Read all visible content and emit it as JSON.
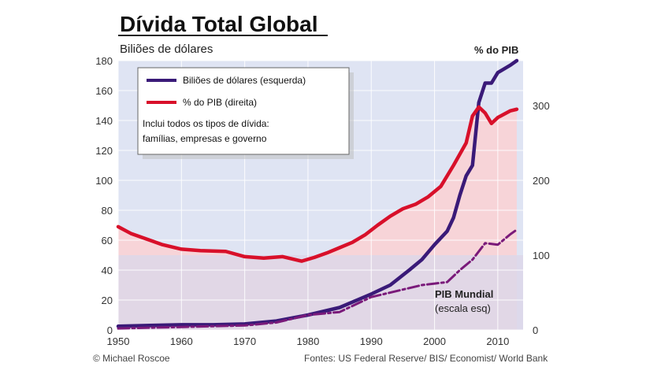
{
  "chart_data": {
    "type": "line",
    "title": "Dívida Total Global",
    "subtitle": "Biliões de dólares",
    "right_axis_label": "% do PIB",
    "x_ticks": [
      "1950",
      "1960",
      "1970",
      "1980",
      "1990",
      "2000",
      "2010"
    ],
    "y_left_ticks": [
      "0",
      "20",
      "40",
      "60",
      "80",
      "100",
      "120",
      "140",
      "160",
      "180"
    ],
    "y_right_ticks": [
      "0",
      "100",
      "200",
      "300"
    ],
    "xlim": [
      1950,
      2014
    ],
    "ylim_left": [
      0,
      180
    ],
    "ylim_right": [
      0,
      360
    ],
    "legend": {
      "items": [
        {
          "label": "Biliões de dólares  (esquerda)",
          "color": "#3a1a78"
        },
        {
          "label": "% do PIB  (direita)",
          "color": "#d8102a"
        }
      ],
      "note_line1": "Inclui todos os tipos de dívida:",
      "note_line2": "famílias, empresas e governo"
    },
    "annotation": {
      "line1": "PIB Mundial",
      "line2": "(escala esq)"
    },
    "series": [
      {
        "name": "Biliões de dólares  (esquerda)",
        "axis": "left",
        "color": "#3a1a78",
        "x": [
          1950,
          1955,
          1960,
          1965,
          1970,
          1975,
          1980,
          1985,
          1990,
          1993,
          1996,
          1998,
          2000,
          2002,
          2003,
          2004,
          2005,
          2006,
          2007,
          2008,
          2009,
          2010,
          2012,
          2013
        ],
        "values": [
          2.5,
          3,
          3.5,
          3.5,
          4,
          6,
          10,
          15,
          24,
          30,
          40,
          47,
          57,
          66,
          75,
          90,
          103,
          110,
          152,
          165,
          165,
          172,
          177,
          180
        ]
      },
      {
        "name": "% do PIB  (direita)",
        "axis": "right",
        "color": "#d8102a",
        "x": [
          1950,
          1952,
          1955,
          1957,
          1960,
          1963,
          1967,
          1970,
          1973,
          1976,
          1979,
          1981,
          1983,
          1985,
          1987,
          1989,
          1991,
          1993,
          1995,
          1997,
          1999,
          2001,
          2003,
          2005,
          2006,
          2007,
          2008,
          2009,
          2010,
          2012,
          2013
        ],
        "values": [
          138,
          129,
          120,
          114,
          108,
          106,
          105,
          98,
          96,
          98,
          92,
          97,
          103,
          110,
          117,
          127,
          140,
          152,
          162,
          168,
          178,
          192,
          220,
          250,
          286,
          298,
          290,
          276,
          284,
          293,
          295
        ]
      },
      {
        "name": "PIB Mundial",
        "axis": "left",
        "color": "#7a1a7a",
        "dashed": true,
        "x": [
          1950,
          1955,
          1960,
          1965,
          1970,
          1975,
          1980,
          1985,
          1990,
          1995,
          1998,
          2000,
          2002,
          2004,
          2006,
          2008,
          2010,
          2012,
          2013
        ],
        "values": [
          1,
          1.5,
          2,
          2.5,
          3,
          5,
          10,
          12,
          22,
          27,
          30,
          31,
          32,
          40,
          47,
          58,
          57,
          64,
          67
        ]
      }
    ],
    "grid": true,
    "reference_line_right": 100
  },
  "footer": {
    "left": "© Michael Roscoe",
    "right": "Fontes: US Federal Reserve/ BIS/ Economist/ World Bank"
  },
  "colors": {
    "plot_bg": "#dfe4f3",
    "lower_band": "#ddd7e9",
    "red_fill": "#f7d4d8",
    "grid": "#ffffff"
  }
}
